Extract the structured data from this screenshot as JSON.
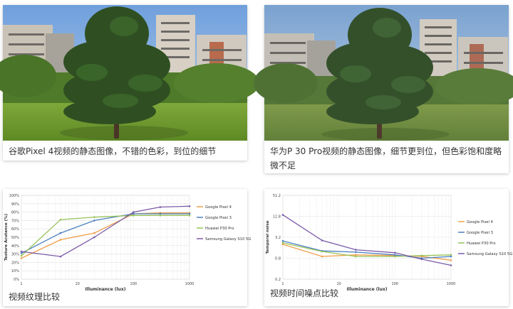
{
  "captions": {
    "pixel4_photo": "谷歌Pixel 4视频的静态图像，不错的色彩，到位的细节",
    "p30pro_photo": "华为P 30 Pro视频的静态图像，细节更到位，但色彩饱和度略微不足",
    "texture_chart": "视频纹理比较",
    "noise_chart": "视频时间噪点比较"
  },
  "colors": {
    "google_pixel_4": "#f0a04a",
    "google_pixel_3": "#4a7fc1",
    "huawei_p30_pro": "#98c25a",
    "samsung_s10_5g": "#7a5ba8"
  },
  "chart_data": [
    {
      "type": "line",
      "ylabel": "Texture Acutance (%)",
      "xlabel": "Illuminance (lux)",
      "x_scale": "log",
      "x": [
        1,
        5,
        20,
        100,
        300,
        1000
      ],
      "x_ticks": [
        "1",
        "10",
        "100",
        "1000"
      ],
      "y_ticks": [
        "0%",
        "10%",
        "20%",
        "30%",
        "40%",
        "50%",
        "60%",
        "70%",
        "80%",
        "90%",
        "100%"
      ],
      "ylim": [
        0,
        100
      ],
      "legend_position": "right",
      "series": [
        {
          "name": "Google Pixel 4",
          "values": [
            25,
            47,
            55,
            78,
            79,
            79
          ]
        },
        {
          "name": "Google Pixel 3",
          "values": [
            31,
            55,
            70,
            78,
            78,
            78
          ]
        },
        {
          "name": "Huawei P30 Pro",
          "values": [
            28,
            71,
            74,
            76,
            76,
            76
          ]
        },
        {
          "name": "Samsung Galaxy S10 5G",
          "values": [
            33,
            27,
            50,
            80,
            86,
            87
          ]
        }
      ]
    },
    {
      "type": "line",
      "ylabel": "Temporal noise",
      "xlabel": "Illuminance (lux)",
      "x_scale": "log",
      "y_scale": "log",
      "x": [
        1,
        5,
        20,
        100,
        300,
        1000
      ],
      "x_ticks": [
        "1",
        "10",
        "100",
        "1000"
      ],
      "y_ticks": [
        "0.2",
        "0.8",
        "3.2",
        "12.8",
        "51.2"
      ],
      "ylim": [
        0.2,
        51.2
      ],
      "legend_position": "right",
      "series": [
        {
          "name": "Google Pixel 4",
          "values": [
            2.0,
            0.9,
            1.0,
            0.95,
            0.9,
            0.7
          ]
        },
        {
          "name": "Google Pixel 3",
          "values": [
            2.5,
            1.3,
            1.2,
            1.0,
            0.8,
            0.9
          ]
        },
        {
          "name": "Huawei P30 Pro",
          "values": [
            2.2,
            1.25,
            0.9,
            0.9,
            0.95,
            1.0
          ]
        },
        {
          "name": "Samsung Galaxy S10 5G",
          "values": [
            14,
            2.6,
            1.4,
            1.15,
            0.75,
            0.5
          ]
        }
      ]
    }
  ]
}
